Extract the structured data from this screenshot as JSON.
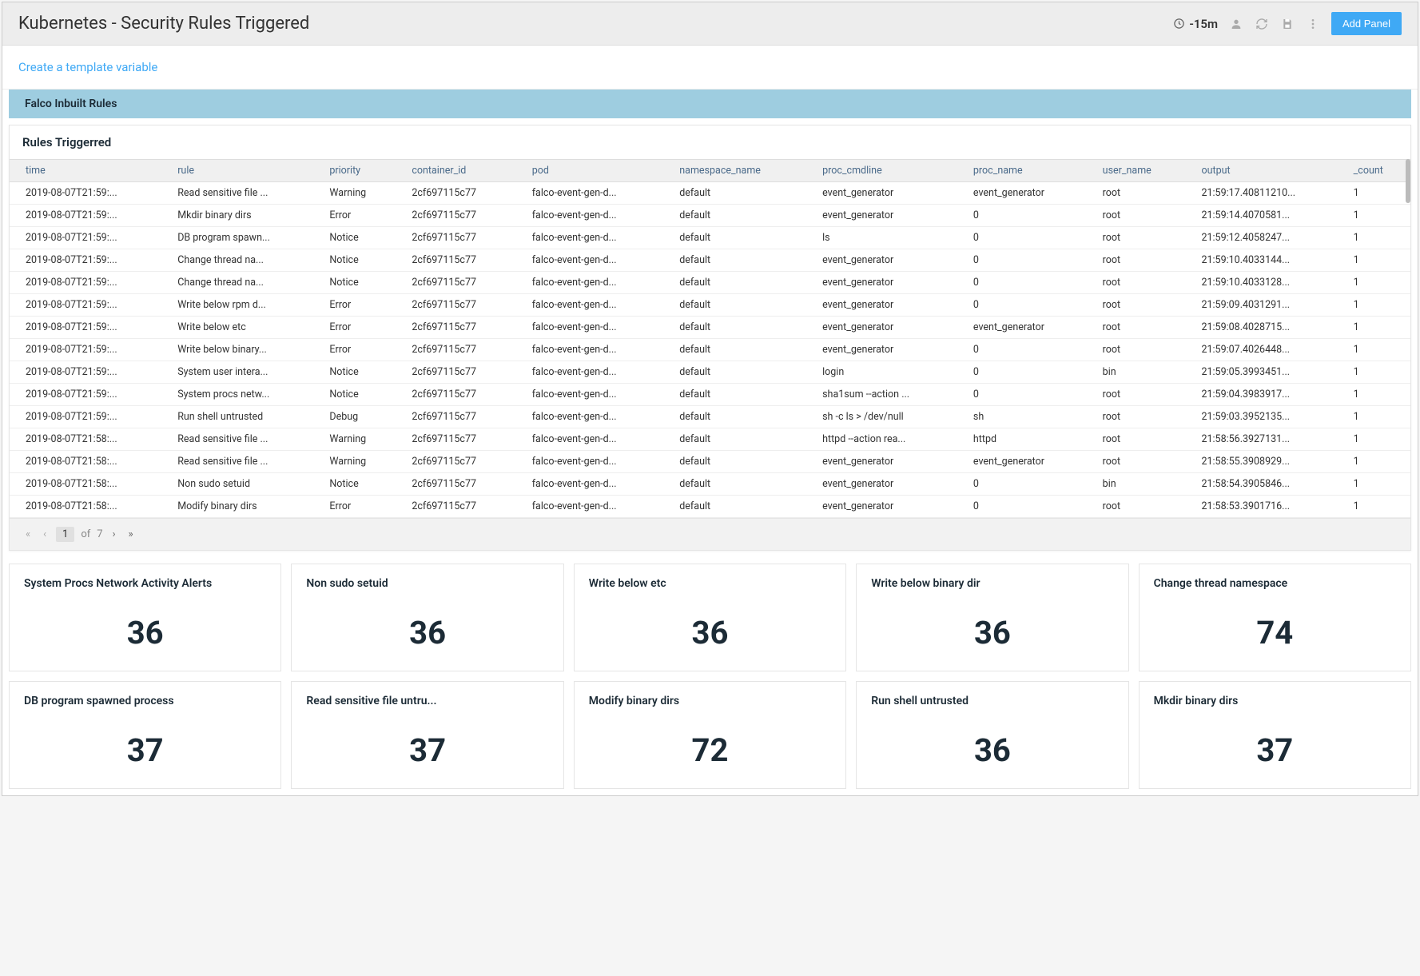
{
  "header": {
    "title": "Kubernetes - Security Rules Triggered",
    "time_range": "-15m",
    "add_panel_label": "Add Panel"
  },
  "template_link": "Create a template variable",
  "section": {
    "title": "Falco Inbuilt Rules"
  },
  "table": {
    "title": "Rules Triggerred",
    "columns": [
      "time",
      "rule",
      "priority",
      "container_id",
      "pod",
      "namespace_name",
      "proc_cmdline",
      "proc_name",
      "user_name",
      "output",
      "_count"
    ],
    "rows": [
      [
        "2019-08-07T21:59:...",
        "Read sensitive file ...",
        "Warning",
        "2cf697115c77",
        "falco-event-gen-d...",
        "default",
        "event_generator",
        "event_generator",
        "root",
        "21:59:17.40811210...",
        "1"
      ],
      [
        "2019-08-07T21:59:...",
        "Mkdir binary dirs",
        "Error",
        "2cf697115c77",
        "falco-event-gen-d...",
        "default",
        "event_generator",
        "0",
        "root",
        "21:59:14.4070581...",
        "1"
      ],
      [
        "2019-08-07T21:59:...",
        "DB program spawn...",
        "Notice",
        "2cf697115c77",
        "falco-event-gen-d...",
        "default",
        "ls",
        "0",
        "root",
        "21:59:12.4058247...",
        "1"
      ],
      [
        "2019-08-07T21:59:...",
        "Change thread na...",
        "Notice",
        "2cf697115c77",
        "falco-event-gen-d...",
        "default",
        "event_generator",
        "0",
        "root",
        "21:59:10.4033144...",
        "1"
      ],
      [
        "2019-08-07T21:59:...",
        "Change thread na...",
        "Notice",
        "2cf697115c77",
        "falco-event-gen-d...",
        "default",
        "event_generator",
        "0",
        "root",
        "21:59:10.4033128...",
        "1"
      ],
      [
        "2019-08-07T21:59:...",
        "Write below rpm d...",
        "Error",
        "2cf697115c77",
        "falco-event-gen-d...",
        "default",
        "event_generator",
        "0",
        "root",
        "21:59:09.4031291...",
        "1"
      ],
      [
        "2019-08-07T21:59:...",
        "Write below etc",
        "Error",
        "2cf697115c77",
        "falco-event-gen-d...",
        "default",
        "event_generator",
        "event_generator",
        "root",
        "21:59:08.4028715...",
        "1"
      ],
      [
        "2019-08-07T21:59:...",
        "Write below binary...",
        "Error",
        "2cf697115c77",
        "falco-event-gen-d...",
        "default",
        "event_generator",
        "0",
        "root",
        "21:59:07.4026448...",
        "1"
      ],
      [
        "2019-08-07T21:59:...",
        "System user intera...",
        "Notice",
        "2cf697115c77",
        "falco-event-gen-d...",
        "default",
        "login",
        "0",
        "bin",
        "21:59:05.3993451...",
        "1"
      ],
      [
        "2019-08-07T21:59:...",
        "System procs netw...",
        "Notice",
        "2cf697115c77",
        "falco-event-gen-d...",
        "default",
        "sha1sum --action ...",
        "0",
        "root",
        "21:59:04.3983917...",
        "1"
      ],
      [
        "2019-08-07T21:59:...",
        "Run shell untrusted",
        "Debug",
        "2cf697115c77",
        "falco-event-gen-d...",
        "default",
        "sh -c ls > /dev/null",
        "sh",
        "root",
        "21:59:03.3952135...",
        "1"
      ],
      [
        "2019-08-07T21:58:...",
        "Read sensitive file ...",
        "Warning",
        "2cf697115c77",
        "falco-event-gen-d...",
        "default",
        "httpd --action rea...",
        "httpd",
        "root",
        "21:58:56.3927131...",
        "1"
      ],
      [
        "2019-08-07T21:58:...",
        "Read sensitive file ...",
        "Warning",
        "2cf697115c77",
        "falco-event-gen-d...",
        "default",
        "event_generator",
        "event_generator",
        "root",
        "21:58:55.3908929...",
        "1"
      ],
      [
        "2019-08-07T21:58:...",
        "Non sudo setuid",
        "Notice",
        "2cf697115c77",
        "falco-event-gen-d...",
        "default",
        "event_generator",
        "0",
        "bin",
        "21:58:54.3905846...",
        "1"
      ],
      [
        "2019-08-07T21:58:...",
        "Modify binary dirs",
        "Error",
        "2cf697115c77",
        "falco-event-gen-d...",
        "default",
        "event_generator",
        "0",
        "root",
        "21:58:53.3901716...",
        "1"
      ]
    ],
    "pagination": {
      "current": "1",
      "of_label": "of",
      "total": "7"
    }
  },
  "cards": [
    {
      "title": "System Procs Network Activity Alerts",
      "value": "36"
    },
    {
      "title": "Non sudo setuid",
      "value": "36"
    },
    {
      "title": "Write below etc",
      "value": "36"
    },
    {
      "title": "Write below binary dir",
      "value": "36"
    },
    {
      "title": "Change thread namespace",
      "value": "74"
    },
    {
      "title": "DB program spawned process",
      "value": "37"
    },
    {
      "title": "Read sensitive file untru...",
      "value": "37"
    },
    {
      "title": "Modify binary dirs",
      "value": "72"
    },
    {
      "title": "Run shell untrusted",
      "value": "36"
    },
    {
      "title": "Mkdir binary dirs",
      "value": "37"
    }
  ],
  "colors": {
    "accent": "#3fa9f5",
    "section_bg": "#9ecde0",
    "header_bg": "#ededed",
    "th_text": "#4a6a8a"
  }
}
